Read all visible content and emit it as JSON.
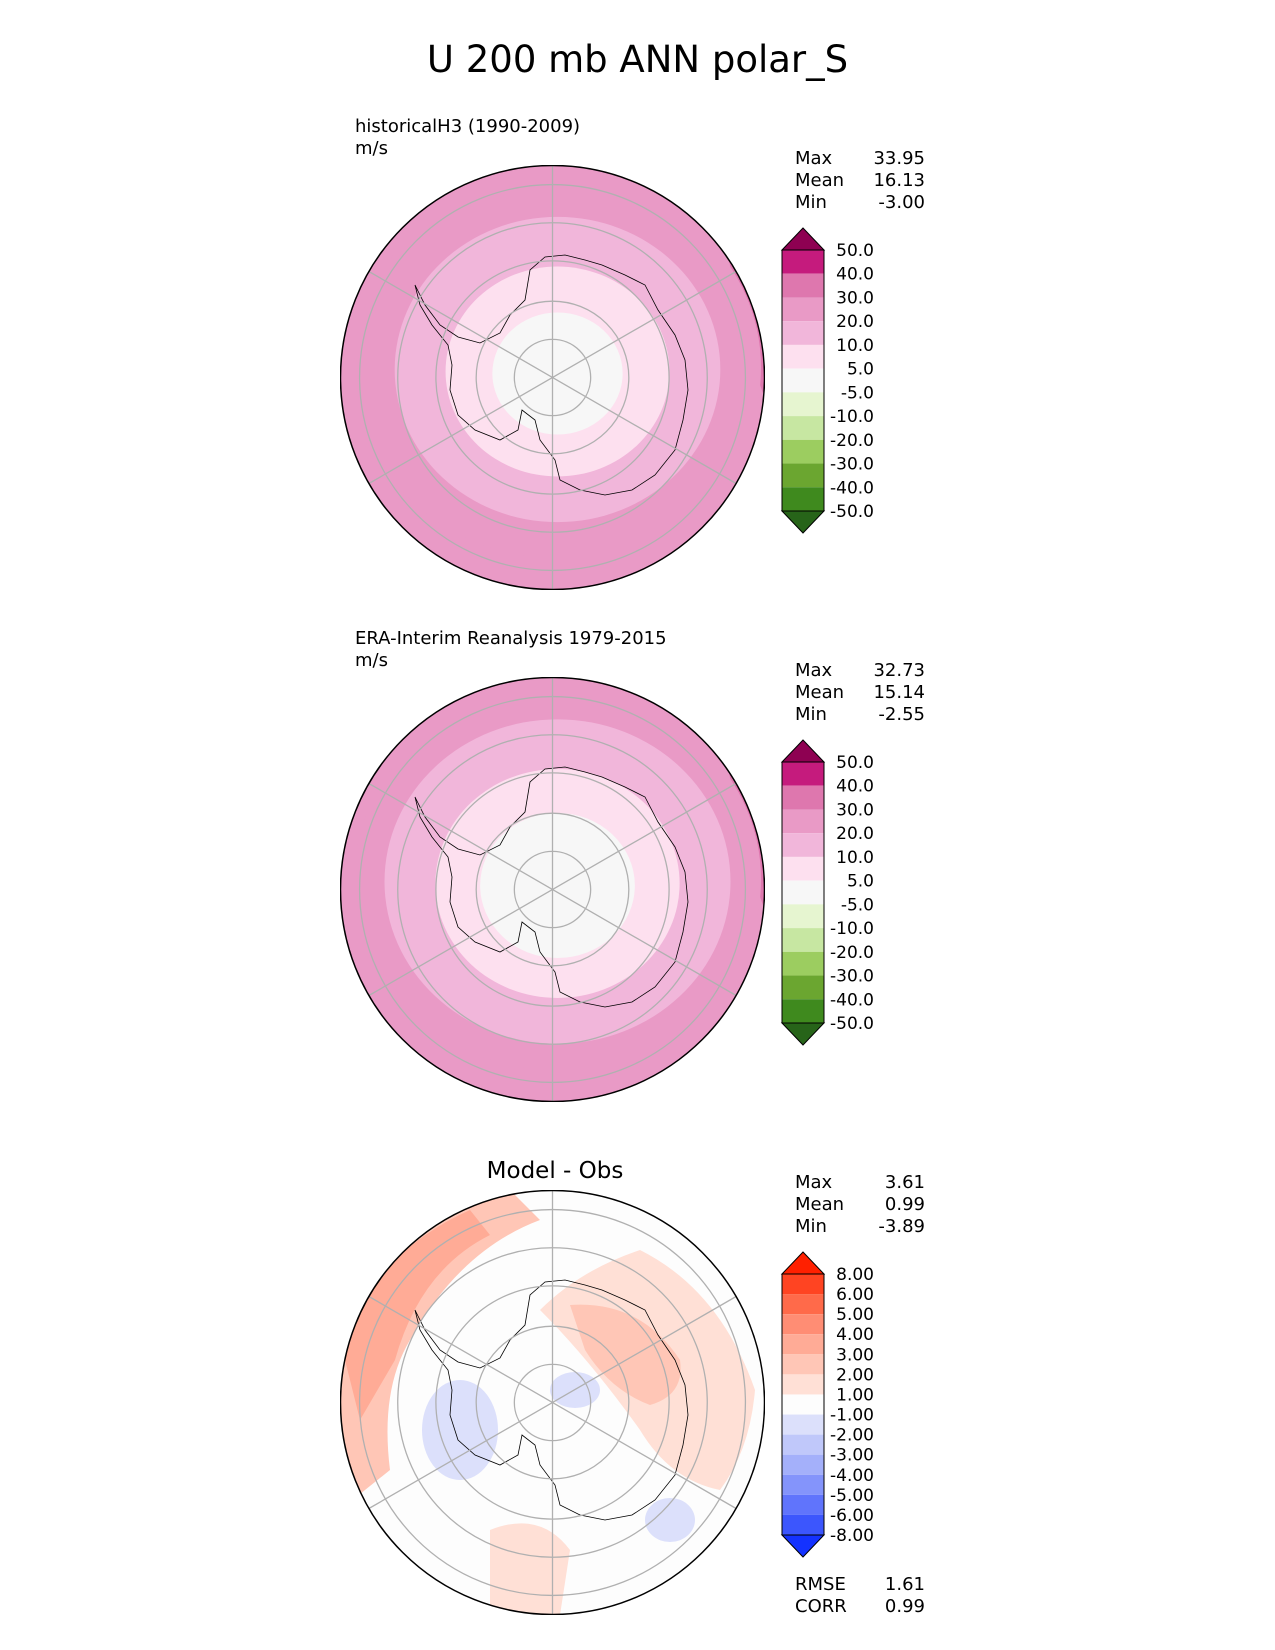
{
  "title": "U 200 mb ANN polar_S",
  "panels": [
    {
      "title": "historicalH3 (1990-2009)",
      "units": "m/s",
      "stats": {
        "max_label": "Max",
        "max": "33.95",
        "mean_label": "Mean",
        "mean": "16.13",
        "min_label": "Min",
        "min": "-3.00"
      },
      "colorbar": {
        "ticks": [
          "50.0",
          "40.0",
          "30.0",
          "20.0",
          "10.0",
          "5.0",
          "-5.0",
          "-10.0",
          "-20.0",
          "-30.0",
          "-40.0",
          "-50.0"
        ],
        "colors": [
          "#8e0152",
          "#c51b7d",
          "#de77ae",
          "#e99ac6",
          "#f1b6da",
          "#fde0ef",
          "#f7f7f7",
          "#e6f5d0",
          "#c7e7a2",
          "#9ccd60",
          "#6ba630",
          "#3f8a1e",
          "#276419"
        ]
      }
    },
    {
      "title": "ERA-Interim Reanalysis 1979-2015",
      "units": "m/s",
      "stats": {
        "max_label": "Max",
        "max": "32.73",
        "mean_label": "Mean",
        "mean": "15.14",
        "min_label": "Min",
        "min": "-2.55"
      },
      "colorbar": {
        "ticks": [
          "50.0",
          "40.0",
          "30.0",
          "20.0",
          "10.0",
          "5.0",
          "-5.0",
          "-10.0",
          "-20.0",
          "-30.0",
          "-40.0",
          "-50.0"
        ],
        "colors": [
          "#8e0152",
          "#c51b7d",
          "#de77ae",
          "#e99ac6",
          "#f1b6da",
          "#fde0ef",
          "#f7f7f7",
          "#e6f5d0",
          "#c7e7a2",
          "#9ccd60",
          "#6ba630",
          "#3f8a1e",
          "#276419"
        ]
      }
    },
    {
      "title": "Model - Obs",
      "stats": {
        "max_label": "Max",
        "max": "3.61",
        "mean_label": "Mean",
        "mean": "0.99",
        "min_label": "Min",
        "min": "-3.89"
      },
      "colorbar": {
        "ticks": [
          "8.00",
          "6.00",
          "5.00",
          "4.00",
          "3.00",
          "2.00",
          "1.00",
          "-1.00",
          "-2.00",
          "-3.00",
          "-4.00",
          "-5.00",
          "-6.00",
          "-8.00"
        ],
        "colors": [
          "#ff2000",
          "#ff4422",
          "#ff6a4a",
          "#ff8d74",
          "#ffab96",
          "#ffc6b6",
          "#ffe0d6",
          "#fdfdfd",
          "#dce0fb",
          "#c0c8fa",
          "#a4b0fa",
          "#8494fb",
          "#6074fc",
          "#3c56fd",
          "#1432ff"
        ]
      },
      "metrics": {
        "rmse_label": "RMSE",
        "rmse": "1.61",
        "corr_label": "CORR",
        "corr": "0.99"
      }
    }
  ],
  "map_fields": {
    "model": [
      {
        "r": 1.0,
        "color": "#e99ac6"
      },
      {
        "r": 0.8,
        "color": "#f1b6da"
      },
      {
        "r": 0.55,
        "color": "#fde0ef"
      },
      {
        "r": 0.32,
        "color": "#f7f7f7"
      }
    ],
    "obs": [
      {
        "r": 1.0,
        "color": "#e99ac6"
      },
      {
        "r": 0.85,
        "color": "#f1b6da"
      },
      {
        "r": 0.6,
        "color": "#fde0ef"
      },
      {
        "r": 0.38,
        "color": "#f7f7f7"
      }
    ]
  }
}
